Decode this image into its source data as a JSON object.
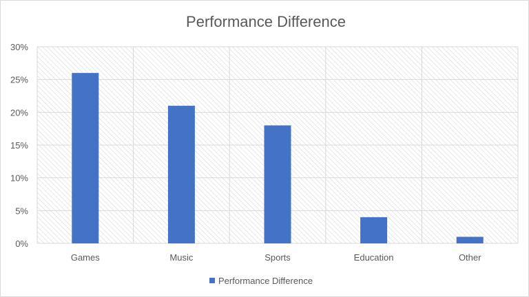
{
  "chart_data": {
    "type": "bar",
    "title": "Performance Difference",
    "categories": [
      "Games",
      "Music",
      "Sports",
      "Education",
      "Other"
    ],
    "series": [
      {
        "name": "Performance Difference",
        "values": [
          0.26,
          0.21,
          0.18,
          0.04,
          0.01
        ],
        "color": "#4472c4"
      }
    ],
    "ylim": [
      0,
      0.3
    ],
    "yticks": [
      "0%",
      "5%",
      "10%",
      "15%",
      "20%",
      "25%",
      "30%"
    ],
    "grid": true,
    "plot_background": "diagonal hatch",
    "legend_position": "bottom"
  }
}
